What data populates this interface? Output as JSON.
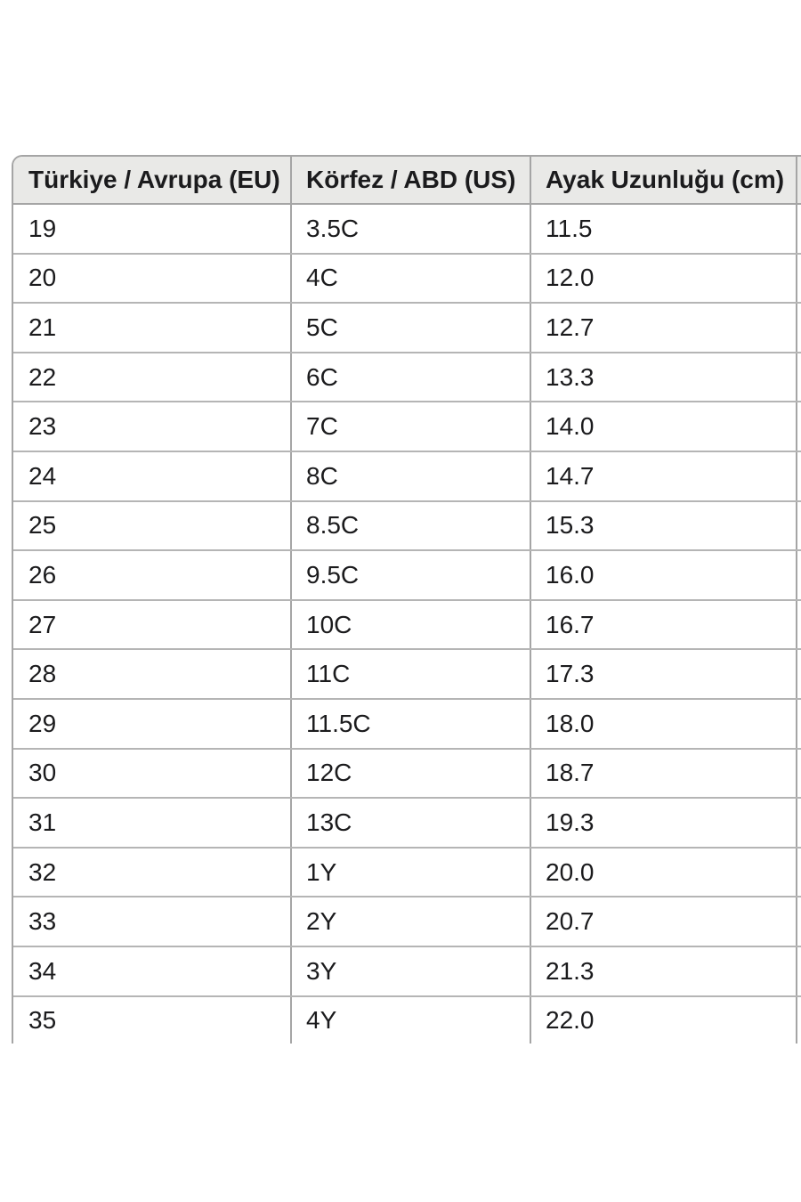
{
  "page": {
    "background": "#ffffff"
  },
  "table": {
    "columns": [
      "Türkiye / Avrupa (EU)",
      "Körfez / ABD (US)",
      "Ayak Uzunluğu (cm)"
    ],
    "rows": [
      [
        "19",
        "3.5C",
        "11.5"
      ],
      [
        "20",
        "4C",
        "12.0"
      ],
      [
        "21",
        "5C",
        "12.7"
      ],
      [
        "22",
        "6C",
        "13.3"
      ],
      [
        "23",
        "7C",
        "14.0"
      ],
      [
        "24",
        "8C",
        "14.7"
      ],
      [
        "25",
        "8.5C",
        "15.3"
      ],
      [
        "26",
        "9.5C",
        "16.0"
      ],
      [
        "27",
        "10C",
        "16.7"
      ],
      [
        "28",
        "11C",
        "17.3"
      ],
      [
        "29",
        "11.5C",
        "18.0"
      ],
      [
        "30",
        "12C",
        "18.7"
      ],
      [
        "31",
        "13C",
        "19.3"
      ],
      [
        "32",
        "1Y",
        "20.0"
      ],
      [
        "33",
        "2Y",
        "20.7"
      ],
      [
        "34",
        "3Y",
        "21.3"
      ],
      [
        "35",
        "4Y",
        "22.0"
      ]
    ],
    "colors": {
      "header_bg": "#e9e9e7",
      "text": "#1b1b1d",
      "outer_border": "#a5a5a5",
      "border_vertical": "#a5a5a5",
      "border_horizontal": "#b5b5b5"
    }
  }
}
